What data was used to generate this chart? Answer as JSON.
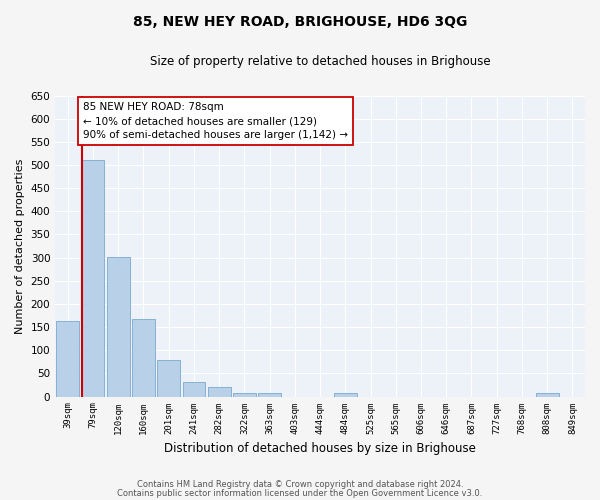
{
  "title": "85, NEW HEY ROAD, BRIGHOUSE, HD6 3QG",
  "subtitle": "Size of property relative to detached houses in Brighouse",
  "xlabel": "Distribution of detached houses by size in Brighouse",
  "ylabel": "Number of detached properties",
  "bar_color": "#b8d0e8",
  "bar_edge_color": "#7aaacf",
  "background_color": "#edf2f9",
  "grid_color": "#ffffff",
  "fig_background": "#f5f5f5",
  "categories": [
    "39sqm",
    "79sqm",
    "120sqm",
    "160sqm",
    "201sqm",
    "241sqm",
    "282sqm",
    "322sqm",
    "363sqm",
    "403sqm",
    "444sqm",
    "484sqm",
    "525sqm",
    "565sqm",
    "606sqm",
    "646sqm",
    "687sqm",
    "727sqm",
    "768sqm",
    "808sqm",
    "849sqm"
  ],
  "values": [
    163,
    510,
    302,
    168,
    79,
    31,
    20,
    8,
    8,
    0,
    0,
    8,
    0,
    0,
    0,
    0,
    0,
    0,
    0,
    7,
    0
  ],
  "ylim": [
    0,
    650
  ],
  "yticks": [
    0,
    50,
    100,
    150,
    200,
    250,
    300,
    350,
    400,
    450,
    500,
    550,
    600,
    650
  ],
  "vline_color": "#cc0000",
  "annotation_text": "85 NEW HEY ROAD: 78sqm\n← 10% of detached houses are smaller (129)\n90% of semi-detached houses are larger (1,142) →",
  "annotation_box_color": "#ffffff",
  "annotation_box_edge": "#cc0000",
  "footer_line1": "Contains HM Land Registry data © Crown copyright and database right 2024.",
  "footer_line2": "Contains public sector information licensed under the Open Government Licence v3.0."
}
